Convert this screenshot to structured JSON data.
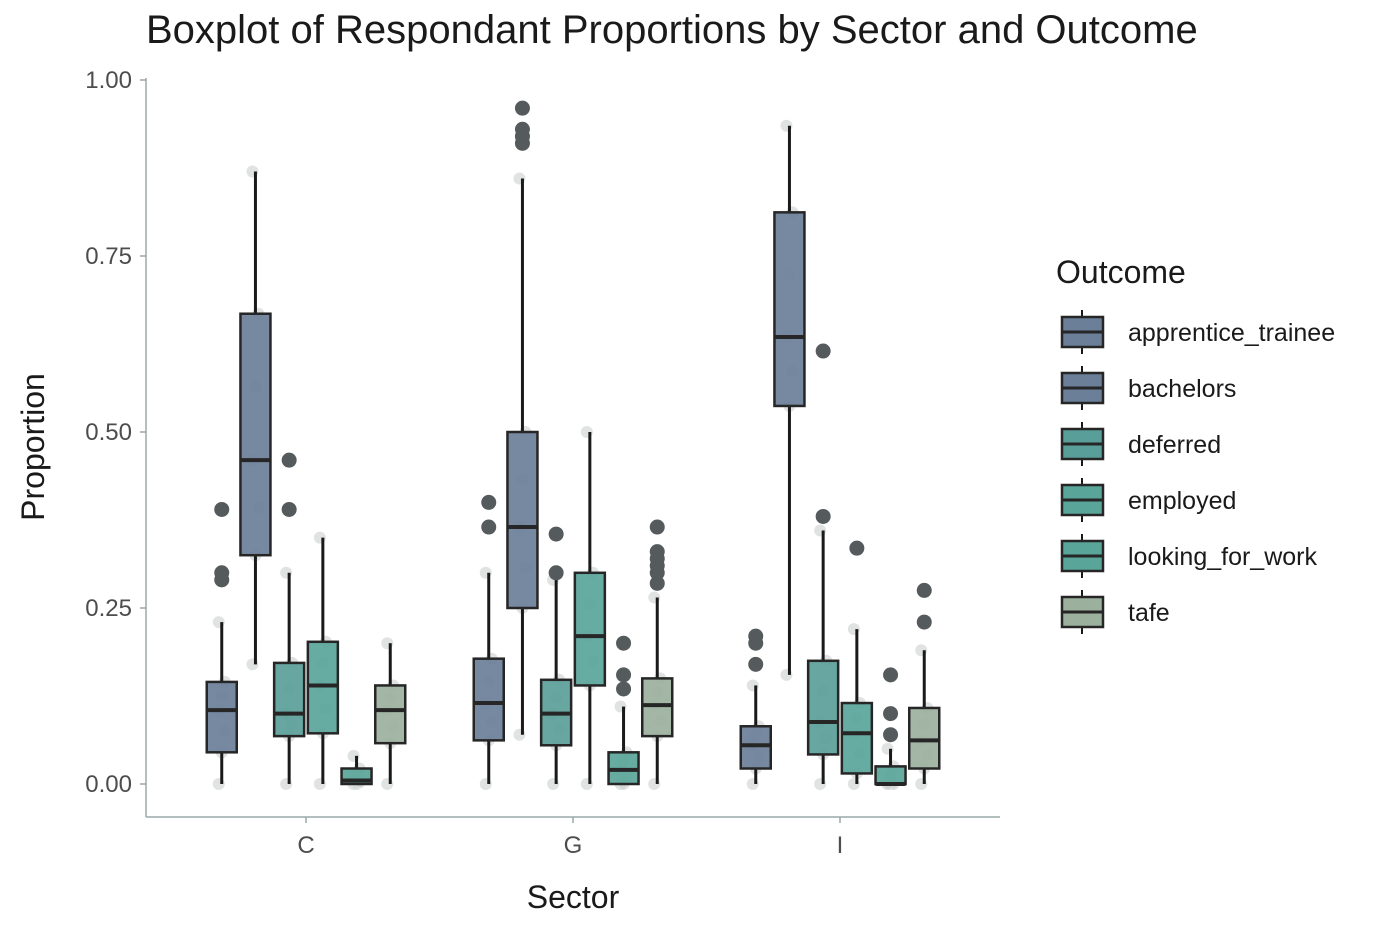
{
  "chart_data": {
    "type": "box",
    "title": "Boxplot of Respondant Proportions by Sector and Outcome",
    "xlabel": "Sector",
    "ylabel": "Proportion",
    "categories": [
      "C",
      "G",
      "I"
    ],
    "ylim": [
      -0.05,
      1.0
    ],
    "yticks": [
      0.0,
      0.25,
      0.5,
      0.75,
      1.0
    ],
    "ytick_labels": [
      "0.00",
      "0.25",
      "0.50",
      "0.75",
      "1.00"
    ],
    "legend": {
      "title": "Outcome",
      "placement": "right"
    },
    "series": [
      {
        "name": "apprentice_trainee",
        "color": "#6b7f99",
        "boxes": [
          {
            "q1": 0.045,
            "median": 0.105,
            "q3": 0.145,
            "whisker_low": 0.0,
            "whisker_high": 0.23,
            "outliers": [
              0.29,
              0.3,
              0.39
            ]
          },
          {
            "q1": 0.062,
            "median": 0.115,
            "q3": 0.178,
            "whisker_low": 0.0,
            "whisker_high": 0.3,
            "outliers": [
              0.365,
              0.4
            ]
          },
          {
            "q1": 0.022,
            "median": 0.055,
            "q3": 0.082,
            "whisker_low": 0.0,
            "whisker_high": 0.14,
            "outliers": [
              0.17,
              0.2,
              0.21
            ]
          }
        ]
      },
      {
        "name": "bachelors",
        "color": "#6b7f99",
        "boxes": [
          {
            "q1": 0.325,
            "median": 0.46,
            "q3": 0.668,
            "whisker_low": 0.17,
            "whisker_high": 0.87,
            "outliers": []
          },
          {
            "q1": 0.25,
            "median": 0.365,
            "q3": 0.5,
            "whisker_low": 0.07,
            "whisker_high": 0.86,
            "outliers": [
              0.91,
              0.92,
              0.93,
              0.96
            ]
          },
          {
            "q1": 0.537,
            "median": 0.635,
            "q3": 0.812,
            "whisker_low": 0.155,
            "whisker_high": 0.935,
            "outliers": []
          }
        ]
      },
      {
        "name": "deferred",
        "color": "#5a9e99",
        "boxes": [
          {
            "q1": 0.068,
            "median": 0.1,
            "q3": 0.172,
            "whisker_low": 0.0,
            "whisker_high": 0.3,
            "outliers": [
              0.39,
              0.46
            ]
          },
          {
            "q1": 0.055,
            "median": 0.1,
            "q3": 0.148,
            "whisker_low": 0.0,
            "whisker_high": 0.29,
            "outliers": [
              0.3,
              0.355
            ]
          },
          {
            "q1": 0.042,
            "median": 0.088,
            "q3": 0.175,
            "whisker_low": 0.0,
            "whisker_high": 0.36,
            "outliers": [
              0.38,
              0.615
            ]
          }
        ]
      },
      {
        "name": "employed",
        "color": "#5aa59a",
        "boxes": [
          {
            "q1": 0.072,
            "median": 0.14,
            "q3": 0.202,
            "whisker_low": 0.0,
            "whisker_high": 0.35,
            "outliers": []
          },
          {
            "q1": 0.14,
            "median": 0.21,
            "q3": 0.3,
            "whisker_low": 0.0,
            "whisker_high": 0.5,
            "outliers": []
          },
          {
            "q1": 0.015,
            "median": 0.072,
            "q3": 0.115,
            "whisker_low": 0.0,
            "whisker_high": 0.22,
            "outliers": [
              0.335
            ]
          }
        ]
      },
      {
        "name": "looking_for_work",
        "color": "#5aa599",
        "boxes": [
          {
            "q1": 0.0,
            "median": 0.005,
            "q3": 0.022,
            "whisker_low": 0.0,
            "whisker_high": 0.04,
            "outliers": []
          },
          {
            "q1": 0.0,
            "median": 0.02,
            "q3": 0.045,
            "whisker_low": 0.0,
            "whisker_high": 0.11,
            "outliers": [
              0.135,
              0.155,
              0.2
            ]
          },
          {
            "q1": 0.0,
            "median": 0.0,
            "q3": 0.025,
            "whisker_low": 0.0,
            "whisker_high": 0.05,
            "outliers": [
              0.07,
              0.1,
              0.155
            ]
          }
        ]
      },
      {
        "name": "tafe",
        "color": "#9cb09e",
        "boxes": [
          {
            "q1": 0.058,
            "median": 0.105,
            "q3": 0.14,
            "whisker_low": 0.0,
            "whisker_high": 0.2,
            "outliers": []
          },
          {
            "q1": 0.068,
            "median": 0.112,
            "q3": 0.15,
            "whisker_low": 0.0,
            "whisker_high": 0.265,
            "outliers": [
              0.285,
              0.3,
              0.31,
              0.32,
              0.33,
              0.365
            ]
          },
          {
            "q1": 0.022,
            "median": 0.062,
            "q3": 0.108,
            "whisker_low": 0.0,
            "whisker_high": 0.19,
            "outliers": [
              0.23,
              0.275
            ]
          }
        ]
      }
    ]
  }
}
